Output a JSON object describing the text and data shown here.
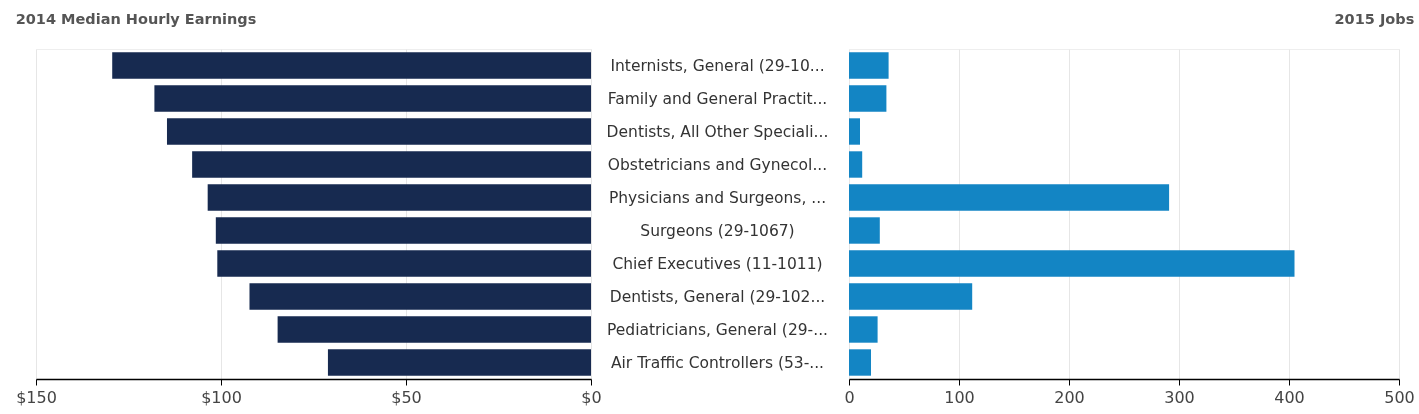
{
  "chart_data": [
    {
      "type": "bar",
      "orientation": "horizontal",
      "title": "2014 Median Hourly Earnings",
      "categories": [
        "Internists, General (29-10...",
        "Family and General Practit...",
        "Dentists, All Other Speciali...",
        "Obstetricians and Gynecol...",
        "Physicians and Surgeons, ...",
        "Surgeons (29-1067)",
        "Chief Executives (11-1011)",
        "Dentists, General (29-102...",
        "Pediatricians, General (29-...",
        "Air Traffic Controllers (53-..."
      ],
      "values": [
        129.4,
        118.0,
        114.6,
        107.8,
        103.6,
        101.4,
        101.0,
        92.3,
        84.7,
        71.1
      ],
      "color": "#172a50",
      "xlim": [
        150,
        0
      ],
      "xticks": [
        {
          "value": 150,
          "label": "$150"
        },
        {
          "value": 100,
          "label": "$100"
        },
        {
          "value": 50,
          "label": "$50"
        },
        {
          "value": 0,
          "label": "$0"
        }
      ],
      "grid": "x"
    },
    {
      "type": "bar",
      "orientation": "horizontal",
      "title": "2015 Jobs",
      "categories": [
        null,
        null,
        null,
        null,
        null,
        null,
        null,
        null,
        null,
        null
      ],
      "values": [
        36,
        34,
        10,
        12,
        291,
        28,
        405,
        112,
        26,
        20
      ],
      "color": "#1385c4",
      "xlim": [
        0,
        500
      ],
      "xticks": [
        0,
        100,
        200,
        300,
        400,
        500
      ],
      "grid": "x",
      "tick_labels": "x"
    }
  ]
}
